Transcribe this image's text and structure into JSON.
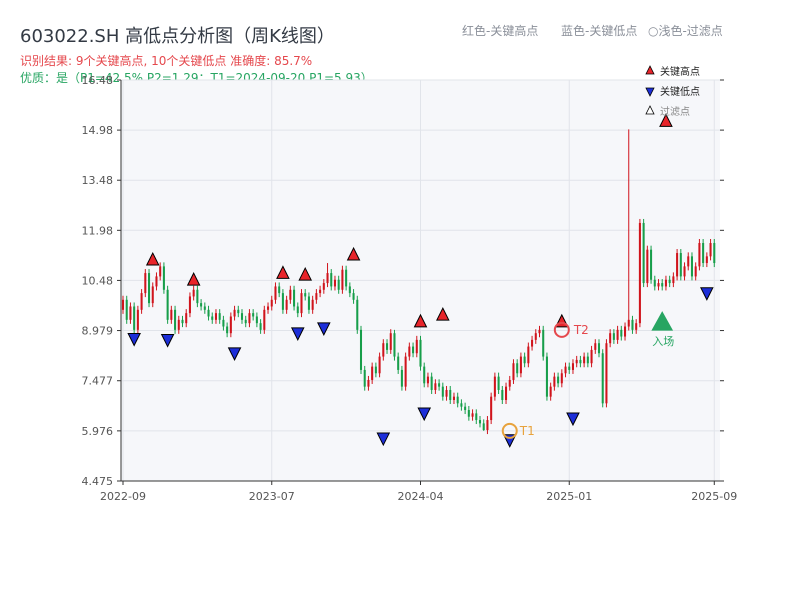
{
  "header": {
    "title": "603022.SH 高低点分析图（周K线图）",
    "result_line": "识别结果: 9个关键高点, 10个关键低点  准确度: 85.7%",
    "quality_line": "优质：是（P1=42.5%  P2=1.29；T1=2024-09-20 P1=5.93）",
    "legend_red": "红色-关键高点",
    "legend_blue": "蓝色-关键低点",
    "legend_filtered": "○浅色-过滤点"
  },
  "legend": {
    "items": [
      {
        "label": "关键高点",
        "color": "#e8242a"
      },
      {
        "label": "关键低点",
        "color": "#1c2ed8"
      },
      {
        "label": "过滤点",
        "color": "#ffffff"
      }
    ]
  },
  "colors": {
    "up": "#d0141c",
    "down": "#179e4a",
    "high_marker": "#e8242a",
    "low_marker": "#1c2ed8",
    "annotation": "#e5484d",
    "t1": "#e8a33d",
    "entry": "#27a562",
    "plot_bg": "#f6f7fa",
    "grid": "#e1e4ea"
  },
  "chart_data": {
    "type": "candlestick",
    "title": "603022.SH 高低点分析图（周K线图）",
    "y_ticks": [
      "16.48",
      "14.98",
      "13.48",
      "11.98",
      "10.48",
      "8.979",
      "7.477",
      "5.976",
      "4.475"
    ],
    "ylim": [
      4.475,
      16.48
    ],
    "x_ticks": [
      {
        "label": "2022-09",
        "index": 0
      },
      {
        "label": "2023-07",
        "index": 40
      },
      {
        "label": "2024-04",
        "index": 80
      },
      {
        "label": "2025-01",
        "index": 120
      },
      {
        "label": "2025-09",
        "index": 159
      }
    ],
    "x_range": [
      0,
      160
    ],
    "candles": [
      [
        9.6,
        9.9
      ],
      [
        9.9,
        9.3
      ],
      [
        9.3,
        9.7
      ],
      [
        9.7,
        9.0
      ],
      [
        9.0,
        9.6
      ],
      [
        9.6,
        10.1
      ],
      [
        10.1,
        10.7
      ],
      [
        10.7,
        9.8
      ],
      [
        9.8,
        10.3
      ],
      [
        10.3,
        10.6
      ],
      [
        10.6,
        10.9
      ],
      [
        10.9,
        10.2
      ],
      [
        10.2,
        9.3
      ],
      [
        9.3,
        9.6
      ],
      [
        9.6,
        9.0
      ],
      [
        9.0,
        9.3
      ],
      [
        9.3,
        9.2
      ],
      [
        9.2,
        9.5
      ],
      [
        9.5,
        10.0
      ],
      [
        10.0,
        10.2
      ],
      [
        10.2,
        9.8
      ],
      [
        9.8,
        9.7
      ],
      [
        9.7,
        9.6
      ],
      [
        9.6,
        9.4
      ],
      [
        9.4,
        9.3
      ],
      [
        9.3,
        9.5
      ],
      [
        9.5,
        9.3
      ],
      [
        9.3,
        9.1
      ],
      [
        9.1,
        8.9
      ],
      [
        8.9,
        9.4
      ],
      [
        9.4,
        9.6
      ],
      [
        9.6,
        9.5
      ],
      [
        9.5,
        9.3
      ],
      [
        9.3,
        9.2
      ],
      [
        9.2,
        9.5
      ],
      [
        9.5,
        9.4
      ],
      [
        9.4,
        9.2
      ],
      [
        9.2,
        9.0
      ],
      [
        9.0,
        9.6
      ],
      [
        9.6,
        9.7
      ],
      [
        9.7,
        9.9
      ],
      [
        9.9,
        10.3
      ],
      [
        10.3,
        10.1
      ],
      [
        10.1,
        9.6
      ],
      [
        9.6,
        9.9
      ],
      [
        9.9,
        10.2
      ],
      [
        10.2,
        9.7
      ],
      [
        9.7,
        9.5
      ],
      [
        9.5,
        10.1
      ],
      [
        10.1,
        10.0
      ],
      [
        10.0,
        9.6
      ],
      [
        9.6,
        9.9
      ],
      [
        9.9,
        10.1
      ],
      [
        10.1,
        10.2
      ],
      [
        10.2,
        10.4
      ],
      [
        10.4,
        10.7
      ],
      [
        10.7,
        10.3
      ],
      [
        10.3,
        10.5
      ],
      [
        10.5,
        10.2
      ],
      [
        10.2,
        10.8
      ],
      [
        10.8,
        10.3
      ],
      [
        10.3,
        10.1
      ],
      [
        10.1,
        9.9
      ],
      [
        9.9,
        9.0
      ],
      [
        9.0,
        7.8
      ],
      [
        7.8,
        7.3
      ],
      [
        7.3,
        7.5
      ],
      [
        7.5,
        7.9
      ],
      [
        7.9,
        7.7
      ],
      [
        7.7,
        8.2
      ],
      [
        8.2,
        8.6
      ],
      [
        8.6,
        8.4
      ],
      [
        8.4,
        8.9
      ],
      [
        8.9,
        8.2
      ],
      [
        8.2,
        7.8
      ],
      [
        7.8,
        7.3
      ],
      [
        7.3,
        8.2
      ],
      [
        8.2,
        8.5
      ],
      [
        8.5,
        8.3
      ],
      [
        8.3,
        8.7
      ],
      [
        8.7,
        7.9
      ],
      [
        7.9,
        7.4
      ],
      [
        7.4,
        7.6
      ],
      [
        7.6,
        7.2
      ],
      [
        7.2,
        7.4
      ],
      [
        7.4,
        7.3
      ],
      [
        7.3,
        7.0
      ],
      [
        7.0,
        7.2
      ],
      [
        7.2,
        6.9
      ],
      [
        6.9,
        7.0
      ],
      [
        7.0,
        6.8
      ],
      [
        6.8,
        6.7
      ],
      [
        6.7,
        6.6
      ],
      [
        6.6,
        6.4
      ],
      [
        6.4,
        6.5
      ],
      [
        6.5,
        6.3
      ],
      [
        6.3,
        6.2
      ],
      [
        6.2,
        6.0
      ],
      [
        6.0,
        6.3
      ],
      [
        6.3,
        7.0
      ],
      [
        7.0,
        7.6
      ],
      [
        7.6,
        7.2
      ],
      [
        7.2,
        6.9
      ],
      [
        6.9,
        7.3
      ],
      [
        7.3,
        7.5
      ],
      [
        7.5,
        8.0
      ],
      [
        8.0,
        7.7
      ],
      [
        7.7,
        8.2
      ],
      [
        8.2,
        8.0
      ],
      [
        8.0,
        8.5
      ],
      [
        8.5,
        8.7
      ],
      [
        8.7,
        8.9
      ],
      [
        8.9,
        9.0
      ],
      [
        9.0,
        8.2
      ],
      [
        8.2,
        7.0
      ],
      [
        7.0,
        7.3
      ],
      [
        7.3,
        7.6
      ],
      [
        7.6,
        7.4
      ],
      [
        7.4,
        7.7
      ],
      [
        7.7,
        7.9
      ],
      [
        7.9,
        7.8
      ],
      [
        7.8,
        8.0
      ],
      [
        8.0,
        8.1
      ],
      [
        8.1,
        8.0
      ],
      [
        8.0,
        8.2
      ],
      [
        8.2,
        8.0
      ],
      [
        8.0,
        8.4
      ],
      [
        8.4,
        8.6
      ],
      [
        8.6,
        8.3
      ],
      [
        8.3,
        6.8
      ],
      [
        6.8,
        8.6
      ],
      [
        8.6,
        8.9
      ],
      [
        8.9,
        8.7
      ],
      [
        8.7,
        9.0
      ],
      [
        9.0,
        8.8
      ],
      [
        8.8,
        9.1
      ],
      [
        9.1,
        9.3
      ],
      [
        9.3,
        9.0
      ],
      [
        9.0,
        9.2
      ],
      [
        9.2,
        12.2
      ],
      [
        12.2,
        10.4
      ],
      [
        10.4,
        11.4
      ],
      [
        11.4,
        10.5
      ],
      [
        10.5,
        10.3
      ],
      [
        10.3,
        10.4
      ],
      [
        10.4,
        10.3
      ],
      [
        10.3,
        10.5
      ],
      [
        10.5,
        10.4
      ],
      [
        10.4,
        10.6
      ],
      [
        10.6,
        11.3
      ],
      [
        11.3,
        10.6
      ],
      [
        10.6,
        10.9
      ],
      [
        10.9,
        11.2
      ],
      [
        11.2,
        10.6
      ],
      [
        10.6,
        10.9
      ],
      [
        10.9,
        11.6
      ],
      [
        11.6,
        11.0
      ],
      [
        11.0,
        11.2
      ],
      [
        11.2,
        11.6
      ],
      [
        11.6,
        11.0
      ]
    ],
    "wick_overrides": [
      {
        "index": 136,
        "high": 15.0
      },
      {
        "index": 55,
        "high": 11.0
      },
      {
        "index": 73,
        "high": 9.0
      },
      {
        "index": 97,
        "low": 5.976
      }
    ],
    "highs": [
      {
        "index": 8,
        "value": 10.85
      },
      {
        "index": 19,
        "value": 10.25
      },
      {
        "index": 43,
        "value": 10.45
      },
      {
        "index": 49,
        "value": 10.4
      },
      {
        "index": 62,
        "value": 11.0
      },
      {
        "index": 80,
        "value": 9.0
      },
      {
        "index": 86,
        "value": 9.2
      },
      {
        "index": 118,
        "value": 9.0
      },
      {
        "index": 146,
        "value": 15.0
      }
    ],
    "lows": [
      {
        "index": 3,
        "value": 8.98
      },
      {
        "index": 12,
        "value": 8.95
      },
      {
        "index": 30,
        "value": 8.55
      },
      {
        "index": 47,
        "value": 9.15
      },
      {
        "index": 54,
        "value": 9.3
      },
      {
        "index": 70,
        "value": 6.0
      },
      {
        "index": 81,
        "value": 6.75
      },
      {
        "index": 104,
        "value": 5.95
      },
      {
        "index": 121,
        "value": 6.6
      },
      {
        "index": 157,
        "value": 10.35
      }
    ],
    "t1": {
      "index": 104,
      "value": 5.976,
      "label": "T1"
    },
    "t2": {
      "index": 118,
      "value": 9.0,
      "label": "T2"
    },
    "entry": {
      "index": 145,
      "value": 9.2,
      "label": "入场"
    }
  }
}
